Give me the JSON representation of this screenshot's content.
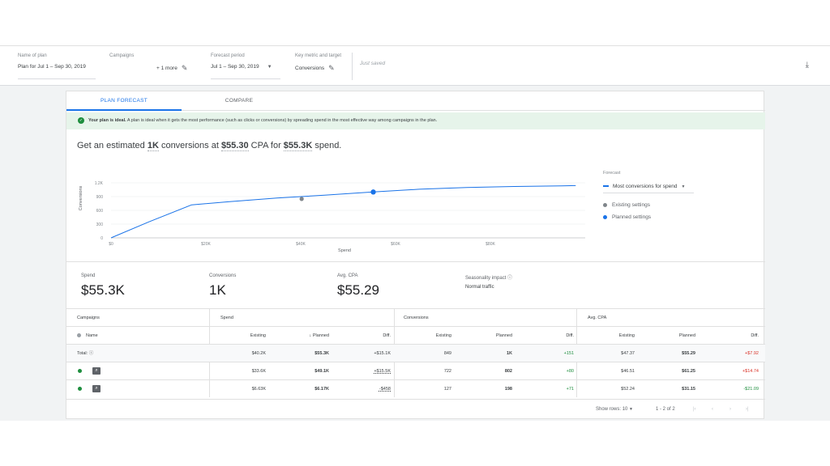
{
  "header": {
    "plan_name_label": "Name of plan",
    "plan_name_value": "Plan for Jul 1 – Sep 30, 2019",
    "campaigns_label": "Campaigns",
    "campaigns_value": "+ 1 more",
    "forecast_label": "Forecast period",
    "forecast_value": "Jul 1 – Sep 30, 2019",
    "metric_label": "Key metric and target",
    "metric_value": "Conversions",
    "status_text": "Just saved",
    "download_icon": "download-icon"
  },
  "tabs": [
    {
      "label": "PLAN FORECAST",
      "active": true
    },
    {
      "label": "COMPARE",
      "active": false
    }
  ],
  "banner": {
    "bold": "Your plan is ideal.",
    "text": " A plan is ideal when it gets the most performance (such as clicks or conversions) by spreading spend in the most effective way among campaigns in the plan."
  },
  "headline": {
    "prefix": "Get an estimated ",
    "conversions": "1K",
    "mid1": " conversions at ",
    "cpa": "$55.30",
    "mid2": " CPA for ",
    "spend": "$55.3K",
    "suffix": " spend."
  },
  "chart_data": {
    "type": "line",
    "xlabel": "Spend",
    "ylabel": "Conversions",
    "x_ticks": [
      "$0",
      "$20K",
      "$40K",
      "$60K",
      "$80K"
    ],
    "y_ticks": [
      "0",
      "300",
      "600",
      "900",
      "1.2K"
    ],
    "xlim": [
      0,
      100000
    ],
    "ylim": [
      0,
      1200
    ],
    "series": [
      {
        "name": "Most conversions for spend",
        "x": [
          0,
          8000,
          17000,
          25000,
          35000,
          45000,
          55300,
          65000,
          75000,
          85000,
          95000,
          98000
        ],
        "y": [
          0,
          350,
          720,
          790,
          870,
          930,
          1000,
          1060,
          1100,
          1120,
          1135,
          1140
        ]
      }
    ],
    "points": [
      {
        "name": "Existing settings",
        "x": 40200,
        "y": 849,
        "color": "#80868b"
      },
      {
        "name": "Planned settings",
        "x": 55300,
        "y": 1000,
        "color": "#1a73e8"
      }
    ]
  },
  "legend": {
    "title": "Forecast",
    "selector": "Most conversions for spend",
    "existing": "Existing settings",
    "planned": "Planned settings"
  },
  "summary": {
    "spend_label": "Spend",
    "spend_value": "$55.3K",
    "conv_label": "Conversions",
    "conv_value": "1K",
    "cpa_label": "Avg. CPA",
    "cpa_value": "$55.29",
    "season_label": "Seasonality impact",
    "season_value": "Normal traffic"
  },
  "table": {
    "group_headers": [
      "Campaigns",
      "Spend",
      "Conversions",
      "Avg. CPA"
    ],
    "col_headers": {
      "name": "Name",
      "existing": "Existing",
      "planned": "Planned",
      "diff": "Diff."
    },
    "total_label": "Total:",
    "rows": [
      {
        "spend": [
          "$40.2K",
          "$55.3K",
          "+$15.1K"
        ],
        "conv": [
          "849",
          "1K",
          "+151"
        ],
        "cpa": [
          "$47.37",
          "$55.29",
          "+$7.92"
        ]
      },
      {
        "spend": [
          "$33.6K",
          "$49.1K",
          "+$15.5K"
        ],
        "conv": [
          "722",
          "802",
          "+80"
        ],
        "cpa": [
          "$46.51",
          "$61.25",
          "+$14.74"
        ]
      },
      {
        "spend": [
          "$6.63K",
          "$6.17K",
          "-$458"
        ],
        "conv": [
          "127",
          "198",
          "+71"
        ],
        "cpa": [
          "$52.24",
          "$31.15",
          "-$21.09"
        ]
      }
    ]
  },
  "footer": {
    "rows_label": "Show rows:",
    "rows_value": "10",
    "range": "1 - 2 of 2"
  }
}
